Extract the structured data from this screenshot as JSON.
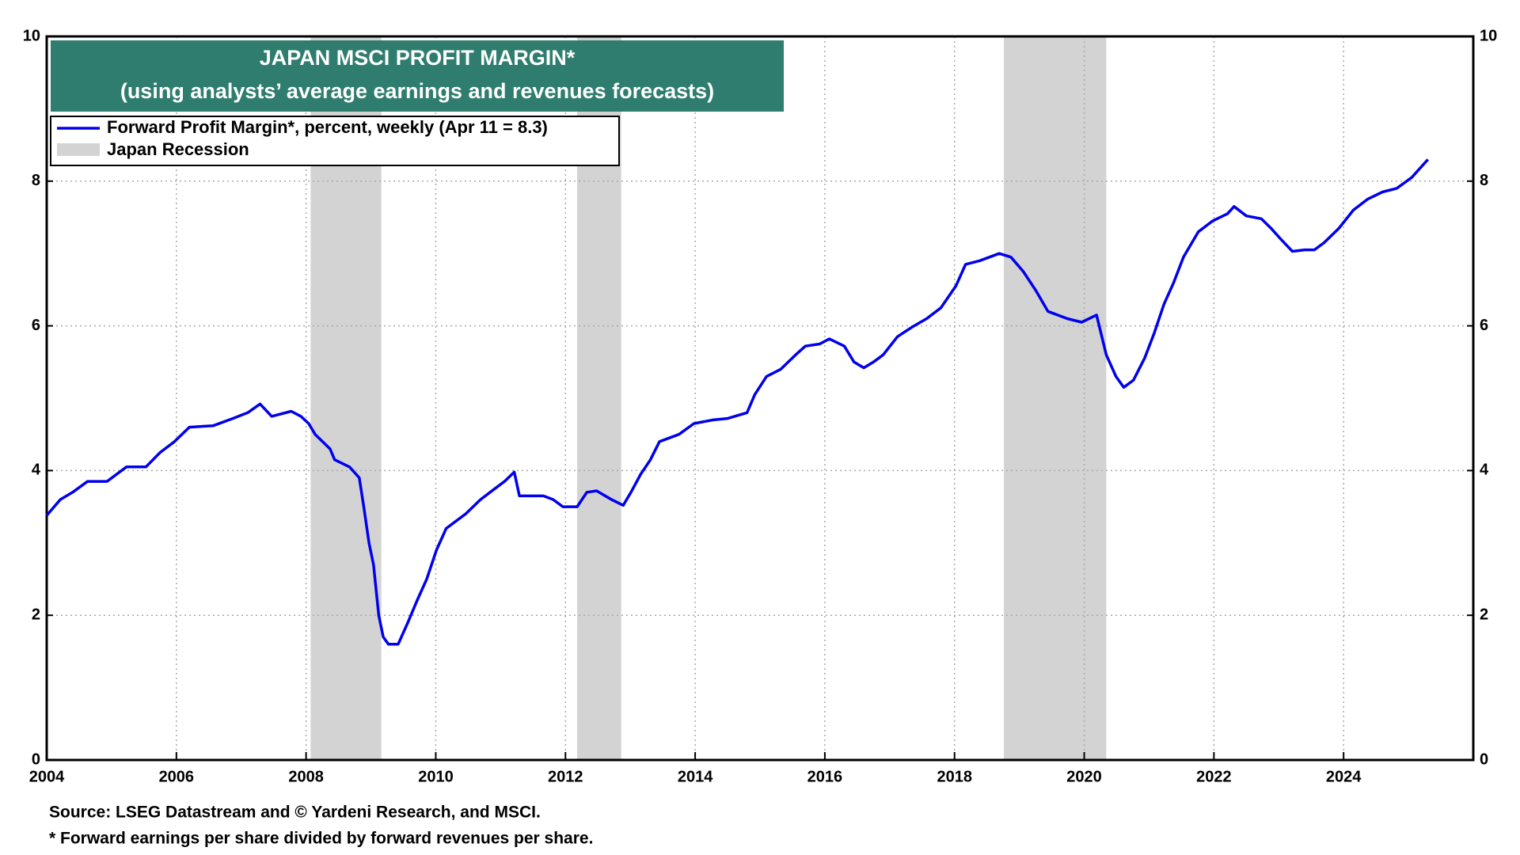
{
  "chart_data": {
    "type": "line",
    "title": "JAPAN MSCI PROFIT MARGIN*",
    "subtitle": "(using analysts’ average earnings and revenues forecasts)",
    "x": [
      2004.0,
      2004.21,
      2004.4,
      2004.63,
      2004.93,
      2005.23,
      2005.53,
      2005.75,
      2005.97,
      2006.2,
      2006.57,
      2006.87,
      2007.1,
      2007.29,
      2007.47,
      2007.77,
      2007.92,
      2008.04,
      2008.14,
      2008.37,
      2008.44,
      2008.67,
      2008.82,
      2008.89,
      2008.97,
      2009.04,
      2009.12,
      2009.19,
      2009.27,
      2009.42,
      2009.57,
      2009.71,
      2009.86,
      2010.01,
      2010.16,
      2010.46,
      2010.69,
      2010.91,
      2011.06,
      2011.21,
      2011.29,
      2011.66,
      2011.81,
      2011.96,
      2012.18,
      2012.33,
      2012.48,
      2012.71,
      2012.89,
      2013.01,
      2013.16,
      2013.31,
      2013.45,
      2013.75,
      2013.98,
      2014.28,
      2014.5,
      2014.8,
      2014.92,
      2015.1,
      2015.32,
      2015.55,
      2015.7,
      2015.92,
      2016.07,
      2016.3,
      2016.45,
      2016.6,
      2016.75,
      2016.9,
      2017.12,
      2017.34,
      2017.57,
      2017.79,
      2018.02,
      2018.17,
      2018.39,
      2018.69,
      2018.87,
      2019.06,
      2019.26,
      2019.44,
      2019.74,
      2019.96,
      2020.19,
      2020.34,
      2020.49,
      2020.61,
      2020.76,
      2020.93,
      2021.08,
      2021.23,
      2021.38,
      2021.53,
      2021.76,
      2021.98,
      2022.21,
      2022.31,
      2022.5,
      2022.73,
      2022.88,
      2023.03,
      2023.21,
      2023.4,
      2023.55,
      2023.7,
      2023.93,
      2024.15,
      2024.37,
      2024.6,
      2024.82,
      2025.05,
      2025.2,
      2025.3
    ],
    "series": [
      {
        "name": "Forward Profit Margin*, percent, weekly (Apr 11 = 8.3)",
        "color": "#0000ee",
        "values": [
          3.38,
          3.6,
          3.7,
          3.85,
          3.85,
          4.05,
          4.05,
          4.25,
          4.4,
          4.6,
          4.62,
          4.72,
          4.8,
          4.92,
          4.75,
          4.82,
          4.75,
          4.65,
          4.5,
          4.3,
          4.15,
          4.05,
          3.9,
          3.5,
          3.0,
          2.7,
          2.0,
          1.7,
          1.6,
          1.6,
          1.9,
          2.2,
          2.5,
          2.9,
          3.2,
          3.4,
          3.6,
          3.75,
          3.85,
          3.98,
          3.65,
          3.65,
          3.6,
          3.5,
          3.5,
          3.7,
          3.72,
          3.6,
          3.52,
          3.7,
          3.95,
          4.15,
          4.4,
          4.5,
          4.65,
          4.7,
          4.72,
          4.8,
          5.05,
          5.3,
          5.4,
          5.6,
          5.72,
          5.75,
          5.82,
          5.72,
          5.5,
          5.42,
          5.5,
          5.6,
          5.85,
          5.98,
          6.1,
          6.25,
          6.55,
          6.85,
          6.9,
          7.0,
          6.95,
          6.75,
          6.48,
          6.2,
          6.1,
          6.05,
          6.15,
          5.6,
          5.3,
          5.15,
          5.25,
          5.55,
          5.9,
          6.3,
          6.6,
          6.95,
          7.3,
          7.45,
          7.55,
          7.65,
          7.52,
          7.48,
          7.35,
          7.2,
          7.03,
          7.05,
          7.05,
          7.15,
          7.35,
          7.6,
          7.75,
          7.85,
          7.9,
          8.05,
          8.2,
          8.3
        ]
      }
    ],
    "recession_label": "Japan Recession",
    "recession_color": "#d3d3d3",
    "recessions": [
      [
        2008.07,
        2009.16
      ],
      [
        2012.18,
        2012.86
      ],
      [
        2018.76,
        2020.34
      ]
    ],
    "xlim": [
      2004,
      2026
    ],
    "xticks": [
      2004,
      2006,
      2008,
      2010,
      2012,
      2014,
      2016,
      2018,
      2020,
      2022,
      2024
    ],
    "ylim": [
      0,
      10
    ],
    "yticks": [
      0,
      2,
      4,
      6,
      8,
      10
    ],
    "y2lim": [
      0,
      10
    ],
    "y2ticks": [
      0,
      2,
      4,
      6,
      8,
      10
    ],
    "grid": true,
    "source": "Source: LSEG Datastream and © Yardeni Research, and MSCI.",
    "footnote": "* Forward earnings per share divided by forward revenues per share."
  }
}
